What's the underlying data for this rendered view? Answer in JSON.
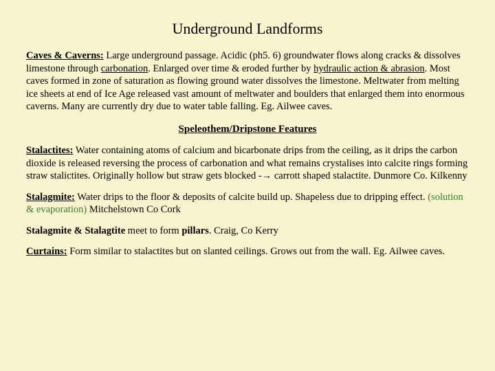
{
  "title": "Underground Landforms",
  "caves_label": "Caves & Caverns:",
  "caves_t1": "   Large underground passage. Acidic (ph5. 6) groundwater flows along cracks & dissolves limestone through ",
  "caves_u1": "carbonation",
  "caves_t2": ". Enlarged over time & eroded further by ",
  "caves_u2": "hydraulic action & abrasion",
  "caves_t3": ". Most caves formed in zone of saturation as flowing ground water dissolves the limestone. Meltwater from melting ice sheets at end of Ice Age released vast amount of meltwater and boulders that enlarged them into enormous caverns. Many are currently dry due to water table falling. Eg. Ailwee caves.",
  "subtitle": "Speleothem/Dripstone Features",
  "stalac_label": "Stalactites:",
  "stalac_body": "   Water containing atoms of calcium and bicarbonate drips from the ceiling, as it drips the carbon dioxide is released reversing the process of carbonation and what remains crystalises into calcite rings forming straw stalictites. Originally hollow but straw gets blocked -→ carrott shaped stalactite. Dunmore Co. Kilkenny",
  "stalag_label": "Stalagmite:",
  "stalag_t1": "  Water drips to the floor & deposits of calcite build up. Shapeless due to dripping effect. ",
  "stalag_green": "(solution & evaporation)",
  "stalag_t2": " Mitchelstown Co Cork",
  "meet_b1": "Stalagmite & Stalagtite",
  "meet_t1": " meet to form ",
  "meet_b2": "pillars",
  "meet_t2": ". Craig, Co Kerry",
  "curtains_label": "Curtains:",
  "curtains_body": " Form similar to stalactites but on slanted ceilings. Grows out from the wall. Eg. Ailwee caves."
}
